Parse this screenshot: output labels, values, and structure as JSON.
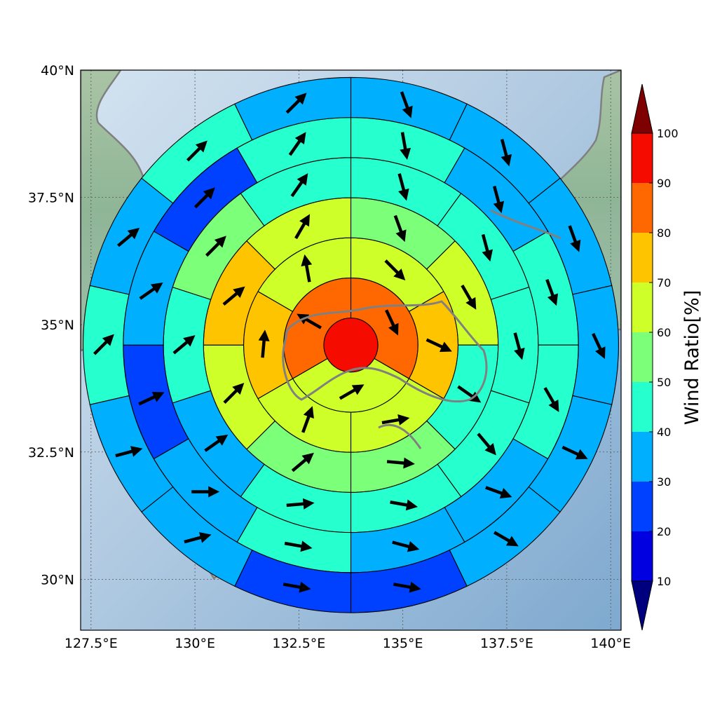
{
  "chart_data": {
    "type": "heatmap",
    "subtype": "polar-sector wind map",
    "map": {
      "lon_range": [
        127.25,
        140.25
      ],
      "lat_range": [
        29.0,
        40.0
      ],
      "x_ticks": [
        127.5,
        130,
        132.5,
        135,
        137.5,
        140
      ],
      "x_tick_labels": [
        "127.5°E",
        "130°E",
        "132.5°E",
        "135°E",
        "137.5°E",
        "140°E"
      ],
      "y_ticks": [
        30,
        32.5,
        35,
        37.5,
        40
      ],
      "y_tick_labels": [
        "30°N",
        "32.5°N",
        "35°N",
        "37.5°N",
        "40°N"
      ],
      "grid": true,
      "center": {
        "lon": 133.75,
        "lat": 34.6
      }
    },
    "colorbar": {
      "title": "Wind Ratio[%]",
      "ticks": [
        10,
        20,
        30,
        40,
        50,
        60,
        70,
        80,
        90,
        100
      ],
      "range": [
        0,
        100
      ],
      "colors": [
        "#00007f",
        "#0000e0",
        "#0040ff",
        "#00b0ff",
        "#26ffce",
        "#7cff79",
        "#ceff29",
        "#ffc400",
        "#ff6800",
        "#f50b00",
        "#7f0000"
      ]
    },
    "rings": [
      {
        "sectors": 1,
        "values": [
          98
        ],
        "directions": [
          0
        ]
      },
      {
        "sectors": 3,
        "values": [
          85,
          65,
          85
        ],
        "directions": [
          155,
          60,
          300
        ]
      },
      {
        "sectors": 6,
        "values": [
          65,
          72,
          68,
          62,
          72,
          64
        ],
        "directions": [
          135,
          115,
          80,
          20,
          5,
          350
        ]
      },
      {
        "sectors": 8,
        "values": [
          55,
          65,
          45,
          55,
          55,
          65,
          72,
          65
        ],
        "directions": [
          160,
          150,
          125,
          95,
          50,
          45,
          50,
          30
        ]
      },
      {
        "sectors": 10,
        "values": [
          45,
          45,
          45,
          45,
          45,
          40,
          35,
          45,
          55,
          45
        ],
        "directions": [
          165,
          165,
          165,
          140,
          100,
          85,
          55,
          50,
          45,
          35
        ]
      },
      {
        "sectors": 12,
        "values": [
          45,
          35,
          45,
          45,
          35,
          35,
          45,
          35,
          25,
          35,
          25,
          45
        ],
        "directions": [
          170,
          165,
          160,
          150,
          110,
          105,
          100,
          90,
          65,
          55,
          45,
          35
        ]
      },
      {
        "sectors": 14,
        "values": [
          35,
          35,
          35,
          35,
          35,
          35,
          25,
          25,
          35,
          35,
          45,
          35,
          45,
          35
        ],
        "directions": [
          160,
          165,
          160,
          155,
          115,
          120,
          100,
          100,
          75,
          75,
          45,
          50,
          45,
          45
        ]
      }
    ]
  }
}
